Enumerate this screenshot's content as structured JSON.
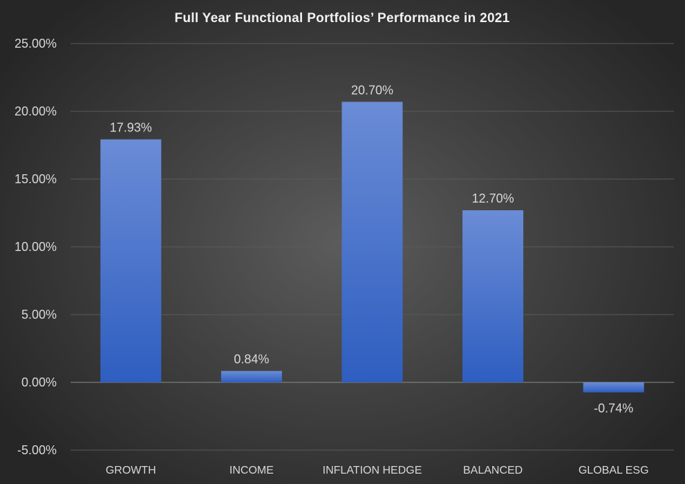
{
  "chart_data": {
    "type": "bar",
    "title": "Full Year Functional Portfolios’ Performance in 2021",
    "categories": [
      "GROWTH",
      "INCOME",
      "INFLATION HEDGE",
      "BALANCED",
      "GLOBAL ESG"
    ],
    "values": [
      17.93,
      0.84,
      20.7,
      12.7,
      -0.74
    ],
    "data_labels": [
      "17.93%",
      "0.84%",
      "20.70%",
      "12.70%",
      "-0.74%"
    ],
    "ylim": [
      -5,
      25
    ],
    "yticks": [
      25,
      20,
      15,
      10,
      5,
      0,
      -5
    ],
    "ytick_labels": [
      "25.00%",
      "20.00%",
      "15.00%",
      "10.00%",
      "5.00%",
      "0.00%",
      "-5.00%"
    ],
    "xlabel": "",
    "ylabel": "",
    "grid": true,
    "legend": "none",
    "colors": {
      "bar_top": "#6b8cd6",
      "bar_bottom": "#2e5ec0",
      "grid": "#5a5a5a",
      "axis": "#8c8c8c"
    }
  }
}
